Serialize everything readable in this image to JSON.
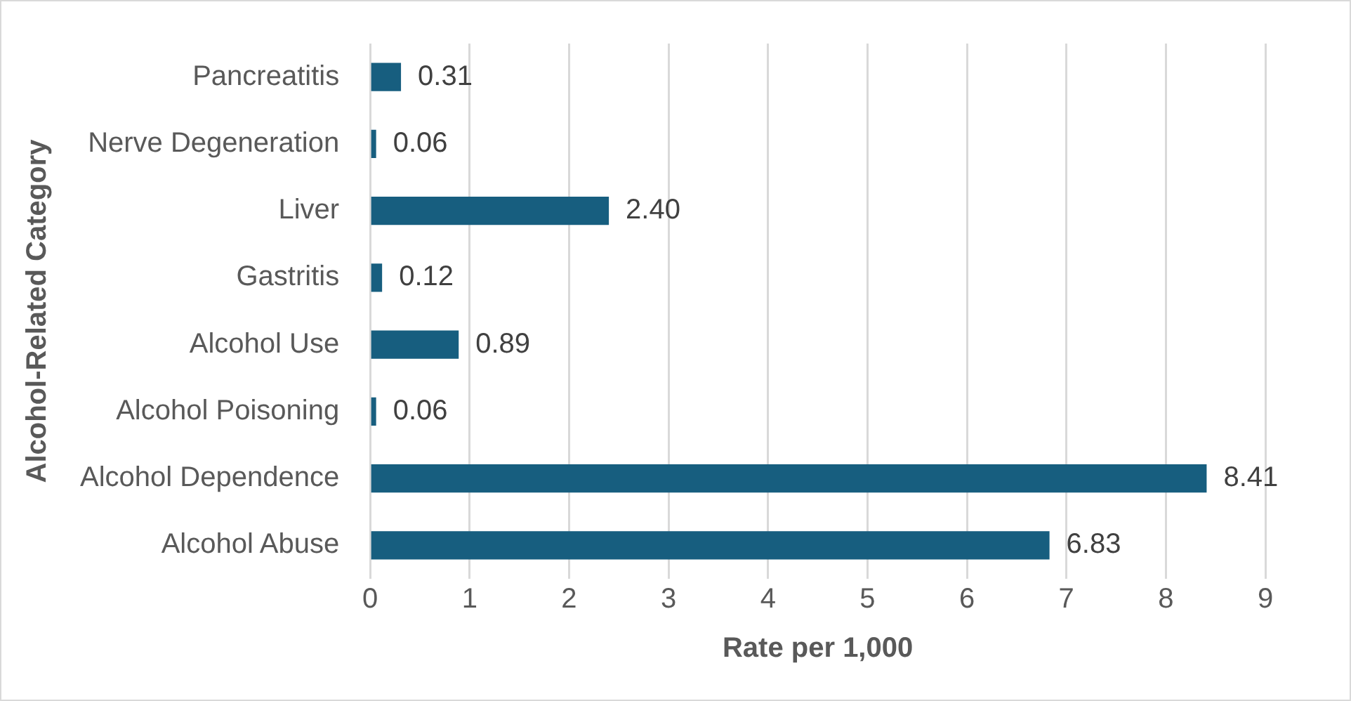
{
  "chart_data": {
    "type": "bar",
    "orientation": "horizontal",
    "xlabel": "Rate per 1,000",
    "ylabel": "Alcohol-Related Category",
    "categories": [
      "Pancreatitis",
      "Nerve Degeneration",
      "Liver",
      "Gastritis",
      "Alcohol Use",
      "Alcohol Poisoning",
      "Alcohol Dependence",
      "Alcohol Abuse"
    ],
    "values": [
      0.31,
      0.06,
      2.4,
      0.12,
      0.89,
      0.06,
      8.41,
      6.83
    ],
    "value_labels": [
      "0.31",
      "0.06",
      "2.40",
      "0.12",
      "0.89",
      "0.06",
      "8.41",
      "6.83"
    ],
    "color": "#175e7f",
    "xlim": [
      0,
      9
    ],
    "xticks": [
      0,
      1,
      2,
      3,
      4,
      5,
      6,
      7,
      8,
      9
    ],
    "grid": "x",
    "legend": false
  }
}
